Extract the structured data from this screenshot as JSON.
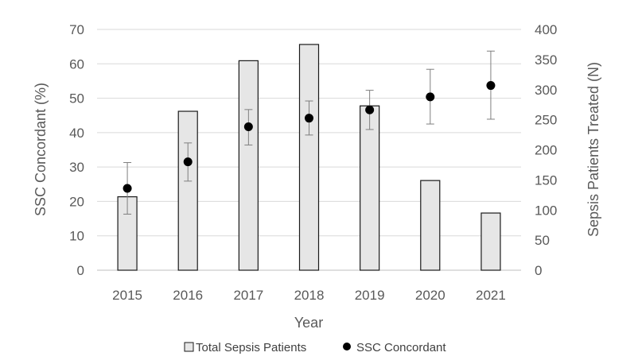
{
  "chart_data": {
    "type": "bar",
    "categories": [
      "2015",
      "2016",
      "2017",
      "2018",
      "2019",
      "2020",
      "2021"
    ],
    "xlabel": "Year",
    "ylabel_left": "SSC Concordant (%)",
    "ylabel_right": "Sepsis Patients Treated (N)",
    "ylim_left": [
      0,
      70
    ],
    "ylim_right": [
      0,
      400
    ],
    "yticks_left": [
      "0",
      "10",
      "20",
      "30",
      "40",
      "50",
      "60",
      "70"
    ],
    "yticks_right": [
      "0",
      "50",
      "100",
      "150",
      "200",
      "250",
      "300",
      "350",
      "400"
    ],
    "grid": true,
    "legend_position": "bottom",
    "series": [
      {
        "name": "Total Sepsis Patients",
        "kind": "bar",
        "axis": "right",
        "values": [
          122,
          264,
          348,
          375,
          273,
          149,
          95
        ],
        "color": "#e6e6e6",
        "edge_color": "#1a1a1a"
      },
      {
        "name": "SSC Concordant",
        "kind": "scatter",
        "axis": "left",
        "values": [
          23.8,
          31.5,
          41.7,
          44.2,
          46.6,
          50.4,
          53.7
        ],
        "error_low": [
          16.3,
          25.9,
          36.4,
          39.3,
          40.9,
          42.5,
          43.9
        ],
        "error_high": [
          31.3,
          37.0,
          46.7,
          49.2,
          52.3,
          58.4,
          63.7
        ],
        "color": "#000000"
      }
    ]
  }
}
